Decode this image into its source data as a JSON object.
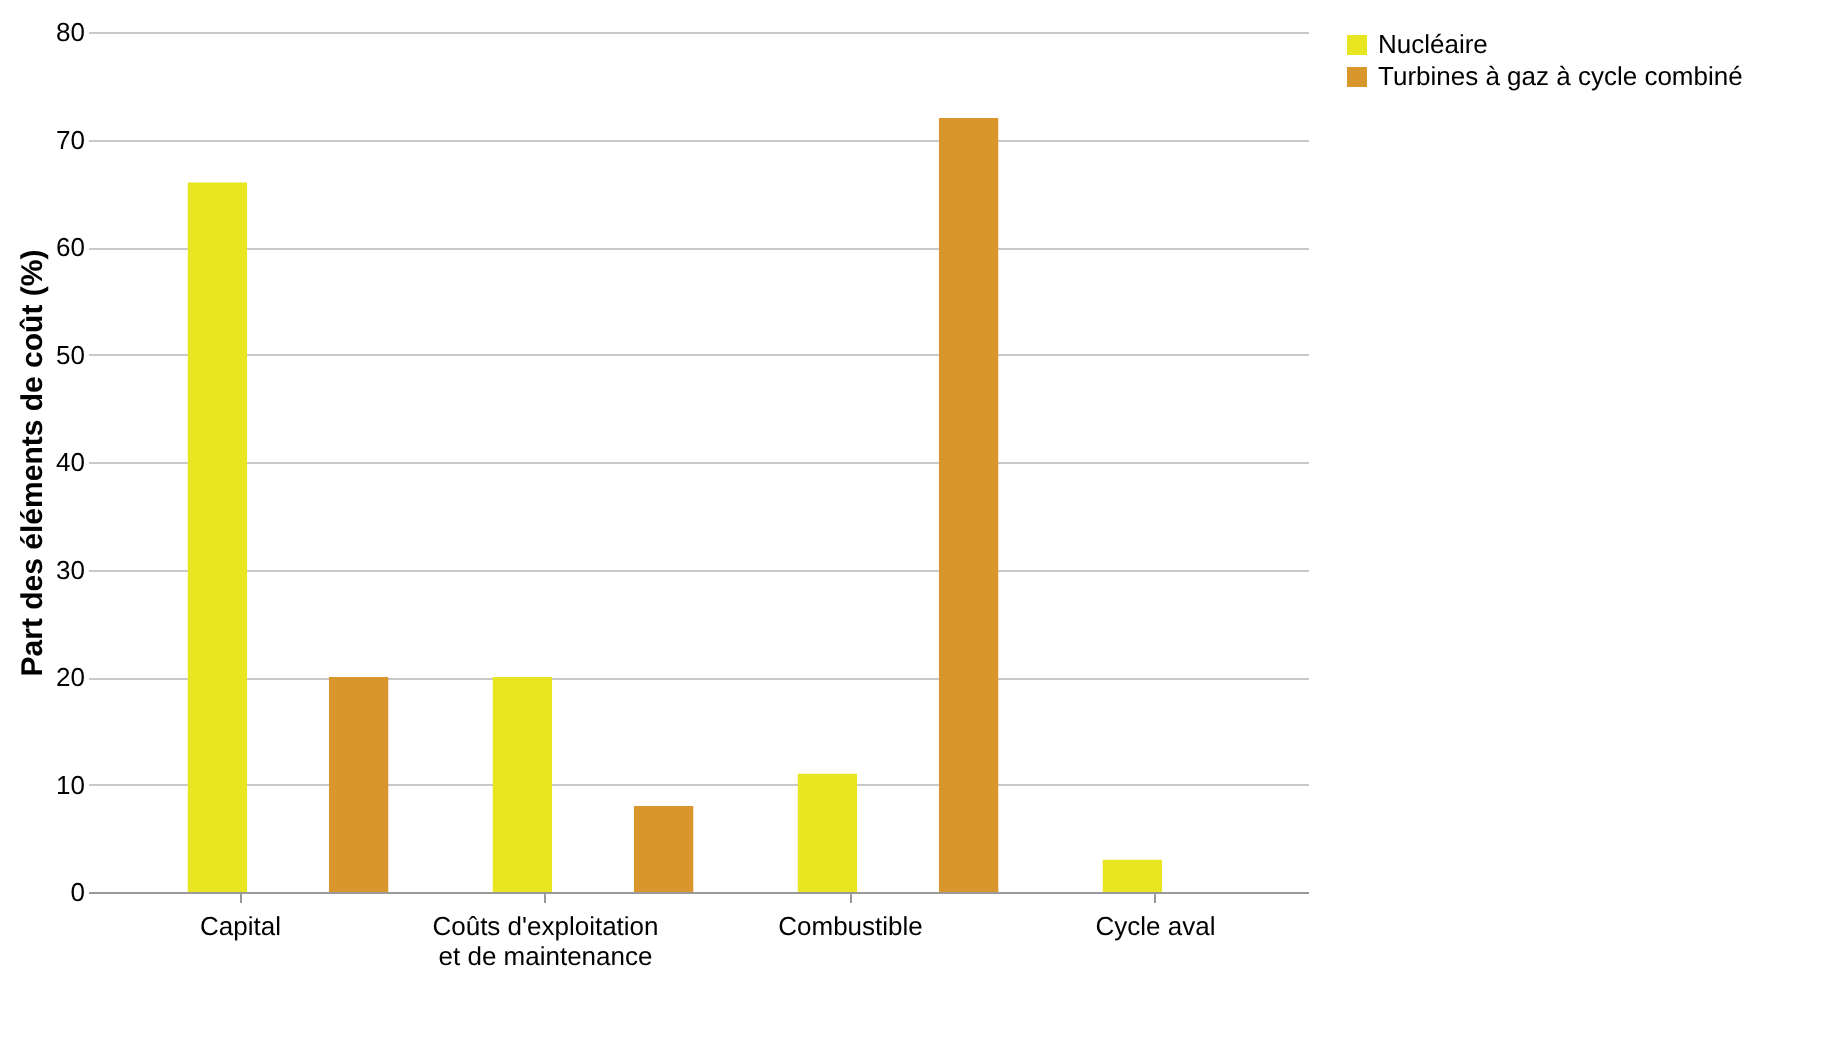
{
  "chart_data": {
    "type": "bar",
    "ylabel": "Part des éléments de coût (%)",
    "categories": [
      "Capital",
      "Coûts d'exploitation et de maintenance",
      "Combustible",
      "Cycle aval"
    ],
    "series": [
      {
        "name": "Nucléaire",
        "color": "#e8e620",
        "values": [
          66,
          20,
          11,
          3
        ]
      },
      {
        "name": "Turbines à gaz à cycle combiné",
        "color": "#d8962c",
        "values": [
          20,
          8,
          72,
          null
        ]
      }
    ],
    "ylim": [
      0,
      80
    ],
    "yticks": [
      0,
      10,
      20,
      30,
      40,
      50,
      60,
      70,
      80
    ],
    "grid": "y",
    "legend": "right"
  }
}
